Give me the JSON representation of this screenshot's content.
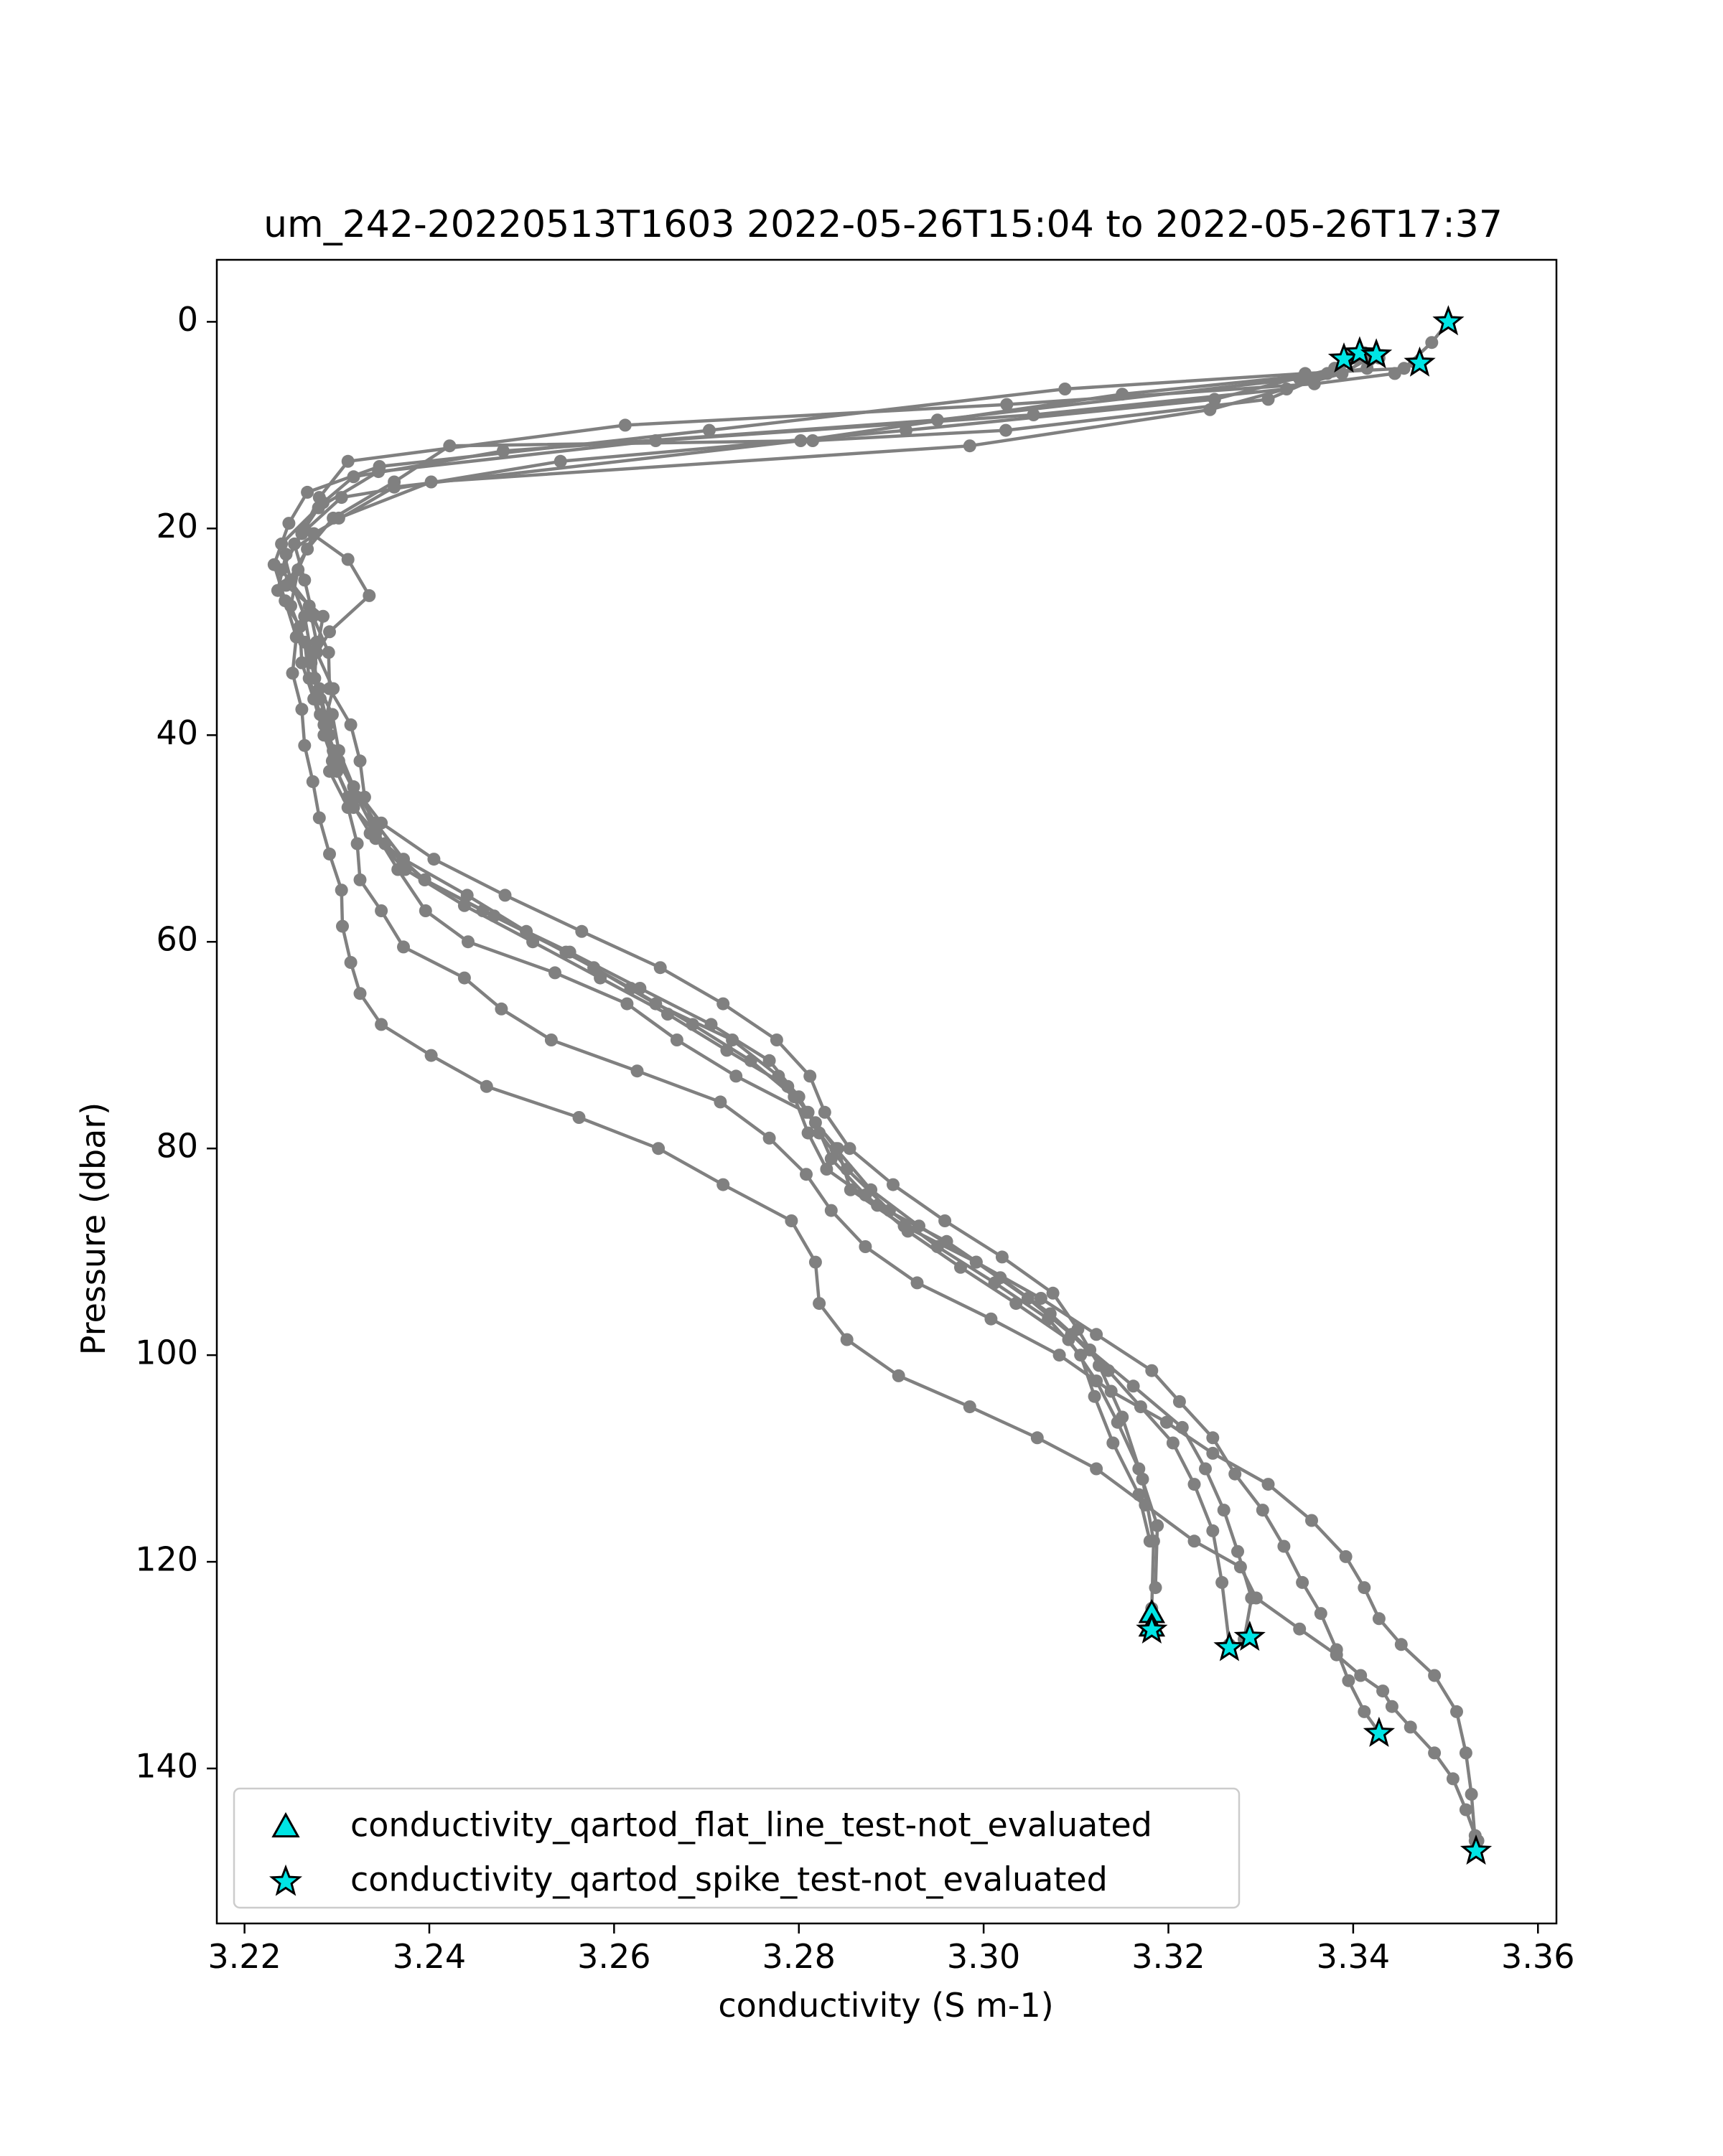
{
  "chart_data": {
    "type": "line",
    "title": "um_242-20220513T1603 2022-05-26T15:04 to 2022-05-26T17:37",
    "xlabel": "conductivity (S m-1)",
    "ylabel": "Pressure (dbar)",
    "xlim": [
      3.217,
      3.362
    ],
    "ylim": [
      155,
      -6
    ],
    "y_inverted": true,
    "grid": false,
    "xticks": [
      3.22,
      3.24,
      3.26,
      3.28,
      3.3,
      3.32,
      3.34,
      3.36
    ],
    "xtick_labels": [
      "3.22",
      "3.24",
      "3.26",
      "3.28",
      "3.30",
      "3.32",
      "3.34",
      "3.36"
    ],
    "yticks": [
      0,
      20,
      40,
      60,
      80,
      100,
      120,
      140
    ],
    "ytick_labels": [
      "0",
      "20",
      "40",
      "60",
      "80",
      "100",
      "120",
      "140"
    ],
    "line_color": "#808080",
    "flag_color": "#00e5e5",
    "legend": {
      "position": "lower-left",
      "entries": [
        {
          "label": "conductivity_qartod_flat_line_test-not_evaluated",
          "marker": "triangle"
        },
        {
          "label": "conductivity_qartod_spike_test-not_evaluated",
          "marker": "star"
        }
      ]
    },
    "series": [
      {
        "x": [
          3.3503,
          3.3485,
          3.3455,
          3.3348,
          3.3088,
          3.2703,
          3.2346,
          3.2268,
          3.2248,
          3.2232,
          3.2244,
          3.2256,
          3.2252,
          3.2262,
          3.2265,
          3.2274,
          3.2281,
          3.2292,
          3.2305,
          3.2306,
          3.2315,
          3.2325,
          3.2348,
          3.2402,
          3.2462,
          3.2562,
          3.2648,
          3.2718,
          3.2792,
          3.2818,
          3.2822,
          3.2852,
          3.2908,
          3.2985,
          3.3058,
          3.3122,
          3.3175,
          3.3228,
          3.3278,
          3.3295,
          3.3342,
          3.3382,
          3.3408,
          3.3432,
          3.3442,
          3.3462,
          3.3488,
          3.3508,
          3.3522,
          3.3532,
          3.3535,
          3.3532
        ],
        "y": [
          0.0,
          2.0,
          4.5,
          5.0,
          6.5,
          10.5,
          14.0,
          16.5,
          19.5,
          23.5,
          27.0,
          30.5,
          34.0,
          37.5,
          41.0,
          44.5,
          48.0,
          51.5,
          55.0,
          58.5,
          62.0,
          65.0,
          68.0,
          71.0,
          74.0,
          77.0,
          80.0,
          83.5,
          87.0,
          91.0,
          95.0,
          98.5,
          102.0,
          105.0,
          108.0,
          111.0,
          114.5,
          118.0,
          120.5,
          123.5,
          126.5,
          129.0,
          131.0,
          132.5,
          134.0,
          136.0,
          138.5,
          141.0,
          144.0,
          146.5,
          147.0,
          148.0
        ]
      },
      {
        "x": [
          3.3468,
          3.3445,
          3.3358,
          3.3025,
          3.2612,
          3.2312,
          3.2281,
          3.2265,
          3.2312,
          3.2335,
          3.2292,
          3.2272,
          3.2282,
          3.2292,
          3.2292,
          3.2312,
          3.2322,
          3.2325,
          3.2348,
          3.2372,
          3.2438,
          3.2478,
          3.2532,
          3.2625,
          3.2715,
          3.2768,
          3.2808,
          3.2835,
          3.2872,
          3.2928,
          3.3008,
          3.3082,
          3.3138,
          3.3198,
          3.3248,
          3.3308,
          3.3355,
          3.3392,
          3.3412,
          3.3428,
          3.3452,
          3.3488,
          3.3512,
          3.3522,
          3.3528,
          3.3532
        ],
        "y": [
          4.0,
          5.0,
          6.0,
          8.0,
          10.0,
          13.5,
          17.0,
          20.0,
          23.0,
          26.5,
          30.0,
          33.0,
          36.5,
          40.0,
          43.5,
          47.0,
          50.5,
          54.0,
          57.0,
          60.5,
          63.5,
          66.5,
          69.5,
          72.5,
          75.5,
          79.0,
          82.5,
          86.0,
          89.5,
          93.0,
          96.5,
          100.0,
          103.5,
          106.5,
          109.5,
          112.5,
          116.0,
          119.5,
          122.5,
          125.5,
          128.0,
          131.0,
          134.5,
          138.5,
          142.5,
          147.0
        ]
      },
      {
        "x": [
          3.3395,
          3.3385,
          3.3308,
          3.3024,
          3.2815,
          3.2422,
          3.2362,
          3.2296,
          3.2268,
          3.2245,
          3.2285,
          3.2278,
          3.2296,
          3.2286,
          3.2302,
          3.2322,
          3.2342,
          3.2366,
          3.2396,
          3.2442,
          3.2536,
          3.2614,
          3.2668,
          3.2732,
          3.2808,
          3.2842,
          3.2856,
          3.2914,
          3.2992,
          3.3062,
          3.3122,
          3.3182,
          3.3212,
          3.3248,
          3.3272,
          3.3302,
          3.3325,
          3.3345,
          3.3365,
          3.3382,
          3.3395,
          3.3412,
          3.3428
        ],
        "y": [
          3.5,
          4.5,
          7.5,
          10.5,
          11.5,
          12.0,
          15.5,
          19.0,
          22.0,
          25.5,
          28.5,
          32.0,
          35.5,
          39.0,
          42.5,
          46.0,
          49.5,
          53.0,
          57.0,
          60.0,
          63.0,
          66.0,
          69.5,
          73.0,
          76.5,
          80.0,
          84.0,
          87.5,
          91.0,
          94.5,
          98.0,
          101.5,
          104.5,
          108.0,
          111.5,
          115.0,
          118.5,
          122.0,
          125.0,
          128.5,
          131.5,
          134.5,
          136.5
        ]
      },
      {
        "x": [
          3.3412,
          3.338,
          3.3328,
          3.3054,
          3.2645,
          3.2345,
          3.228,
          3.2254,
          3.2265,
          3.2274,
          3.2291,
          3.2292,
          3.2315,
          3.2325,
          3.233,
          3.2342,
          3.2395,
          3.2458,
          3.2548,
          3.2618,
          3.2685,
          3.2748,
          3.2795,
          3.281,
          3.283,
          3.2885,
          3.296,
          3.3018,
          3.3072,
          3.3115,
          3.3162,
          3.3215,
          3.324,
          3.326,
          3.3275,
          3.329,
          3.3282
        ],
        "y": [
          3.0,
          4.5,
          6.5,
          9.0,
          11.5,
          14.5,
          18.0,
          21.5,
          25.0,
          28.5,
          32.0,
          35.5,
          39.0,
          42.5,
          46.0,
          50.0,
          54.0,
          57.0,
          61.0,
          64.5,
          68.0,
          71.5,
          75.0,
          78.5,
          82.0,
          85.5,
          89.0,
          92.5,
          96.0,
          99.5,
          103.0,
          107.0,
          111.0,
          115.0,
          119.0,
          123.5,
          127.5
        ]
      },
      {
        "x": [
          3.3392,
          3.338,
          3.325,
          3.2916,
          3.2542,
          3.2305,
          3.2262,
          3.224,
          3.227,
          3.2278,
          3.2276,
          3.2295,
          3.2302,
          3.2318,
          3.2342,
          3.2372,
          3.2441,
          3.2505,
          3.2578,
          3.2645,
          3.2728,
          3.2778,
          3.281,
          3.284,
          3.2878,
          3.293,
          3.2992,
          3.3048,
          3.3095,
          3.3135,
          3.317,
          3.3205,
          3.3228,
          3.3248,
          3.3258,
          3.3266
        ],
        "y": [
          3.5,
          4.5,
          7.5,
          10.5,
          13.5,
          17.0,
          20.5,
          24.0,
          27.5,
          31.0,
          34.5,
          38.0,
          41.5,
          45.0,
          48.5,
          52.0,
          55.5,
          59.0,
          62.5,
          66.0,
          69.5,
          73.0,
          76.5,
          80.0,
          84.0,
          87.5,
          91.0,
          94.5,
          98.0,
          101.5,
          105.0,
          108.5,
          112.5,
          117.0,
          122.0,
          128.0
        ]
      },
      {
        "x": [
          3.3428,
          3.3415,
          3.3342,
          3.295,
          3.248,
          3.2318,
          3.2285,
          3.224,
          3.225,
          3.2265,
          3.2272,
          3.2281,
          3.229,
          3.2295,
          3.2312,
          3.2336,
          3.2374,
          3.2438,
          3.2512,
          3.2585,
          3.2658,
          3.2722,
          3.2788,
          3.2818,
          3.2835,
          3.2872,
          3.2918,
          3.2975,
          3.3035,
          3.3092,
          3.3122,
          3.3145,
          3.3168,
          3.3188,
          3.3186
        ],
        "y": [
          3.5,
          4.5,
          5.5,
          9.5,
          12.5,
          15.0,
          17.5,
          21.5,
          25.0,
          28.5,
          32.0,
          35.5,
          39.0,
          42.5,
          46.0,
          49.5,
          53.0,
          56.5,
          60.0,
          63.5,
          67.0,
          70.5,
          74.0,
          77.5,
          81.0,
          84.5,
          88.0,
          91.5,
          95.0,
          98.5,
          102.5,
          106.5,
          111.0,
          116.5,
          122.5
        ]
      },
      {
        "x": [
          3.3418,
          3.3388,
          3.3245,
          3.2985,
          3.2402,
          3.2302,
          3.2245,
          3.2236,
          3.226,
          3.2262,
          3.2275,
          3.2286,
          3.23,
          3.2318,
          3.2352,
          3.2395,
          3.247,
          3.2552,
          3.2628,
          3.2705,
          3.2768,
          3.28,
          3.2822,
          3.2852,
          3.2898,
          3.295,
          3.3012,
          3.307,
          3.3105,
          3.312,
          3.314,
          3.3168,
          3.318
        ],
        "y": [
          3.5,
          5.0,
          8.5,
          12.0,
          15.5,
          19.0,
          22.5,
          26.0,
          29.5,
          33.0,
          36.5,
          40.0,
          43.5,
          47.0,
          50.5,
          54.0,
          57.5,
          61.0,
          64.5,
          68.0,
          71.5,
          75.0,
          78.5,
          82.0,
          86.0,
          89.5,
          93.0,
          96.5,
          100.0,
          104.0,
          108.5,
          113.5,
          118.0
        ]
      },
      {
        "x": [
          3.3402,
          3.3372,
          3.315,
          3.2802,
          3.2362,
          3.2275,
          3.2258,
          3.225,
          3.2265,
          3.227,
          3.2282,
          3.2296,
          3.2318,
          3.2348,
          3.2405,
          3.2482,
          3.2565,
          3.265,
          3.2718,
          3.2776,
          3.2812,
          3.2828,
          3.2855,
          3.2902,
          3.2958,
          3.302,
          3.3075,
          3.3102,
          3.3125,
          3.315,
          3.3172,
          3.3184,
          3.3182
        ],
        "y": [
          3.5,
          5.0,
          7.0,
          11.5,
          16.0,
          20.5,
          24.0,
          27.5,
          31.0,
          34.5,
          38.0,
          41.5,
          45.0,
          48.5,
          52.0,
          55.5,
          59.0,
          62.5,
          66.0,
          69.5,
          73.0,
          76.5,
          80.0,
          83.5,
          87.0,
          90.5,
          94.0,
          97.5,
          101.0,
          106.0,
          112.0,
          118.0,
          124.5
        ]
      }
    ],
    "flat_line_flags": [
      {
        "x": 3.3182,
        "y": 125.0
      },
      {
        "x": 3.3182,
        "y": 126.3
      }
    ],
    "spike_flags": [
      {
        "x": 3.3503,
        "y": 0.0
      },
      {
        "x": 3.339,
        "y": 3.6
      },
      {
        "x": 3.3407,
        "y": 3.0
      },
      {
        "x": 3.3425,
        "y": 3.2
      },
      {
        "x": 3.3472,
        "y": 4.0
      },
      {
        "x": 3.3182,
        "y": 126.6
      },
      {
        "x": 3.3266,
        "y": 128.3
      },
      {
        "x": 3.3288,
        "y": 127.3
      },
      {
        "x": 3.3428,
        "y": 136.6
      },
      {
        "x": 3.3533,
        "y": 148.0
      }
    ]
  }
}
